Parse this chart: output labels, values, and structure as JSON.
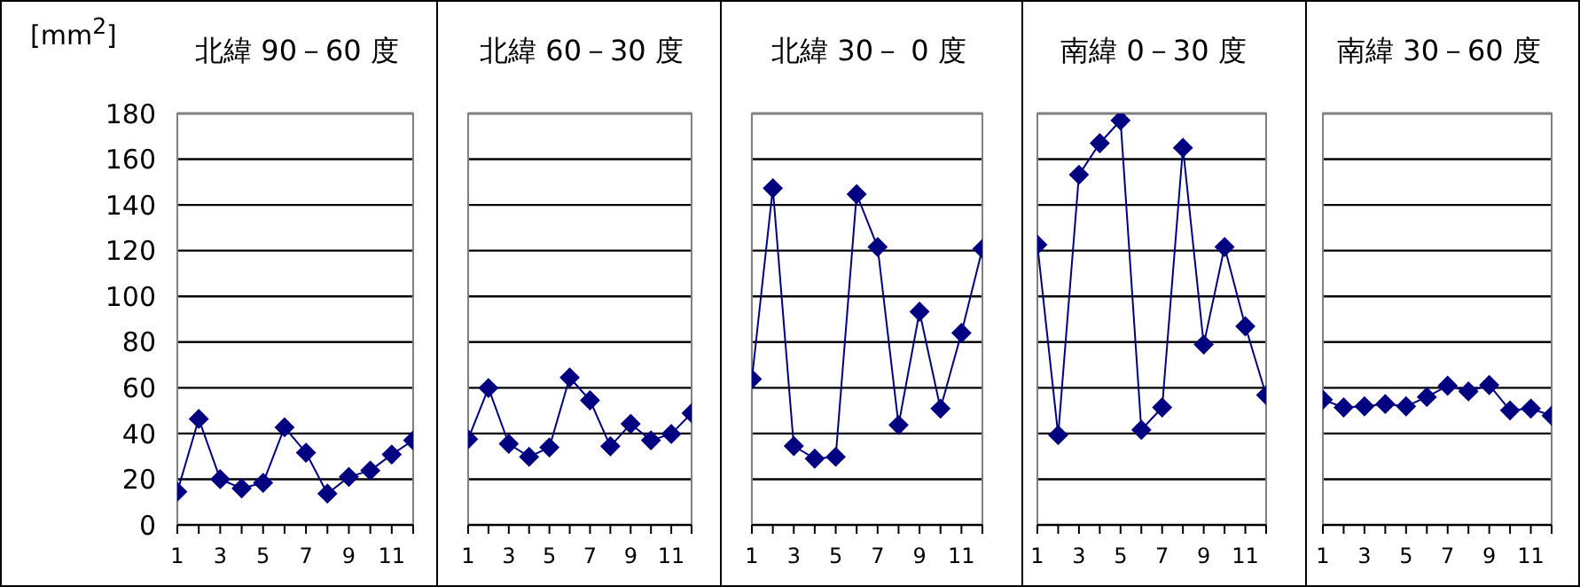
{
  "chart_data": [
    {
      "type": "line",
      "title": "北緯 90－60 度",
      "ylabel": "[mm$^{2}$]",
      "x": [
        1,
        2,
        3,
        4,
        5,
        6,
        7,
        8,
        9,
        10,
        11,
        12
      ],
      "series": [
        {
          "color": "#000080",
          "values": [
            14.5,
            46.4,
            20,
            16,
            18.4,
            42.7,
            31.6,
            13.7,
            21,
            23.8,
            30.8,
            37
          ]
        }
      ],
      "xlim": [
        1,
        12
      ],
      "xticks": [
        1,
        {
          "value": 2,
          "label": null
        },
        3,
        {
          "value": 4,
          "label": null
        },
        5,
        {
          "value": 6,
          "label": null
        },
        7,
        {
          "value": 8,
          "label": null
        },
        9,
        {
          "value": 10,
          "label": null
        },
        11,
        {
          "value": 12,
          "label": null
        }
      ],
      "ylim": [
        0,
        180
      ],
      "yticks": [
        0,
        20,
        40,
        60,
        80,
        100,
        120,
        140,
        160,
        180
      ],
      "grid": "y",
      "marker": "diamond",
      "legend": false
    },
    {
      "type": "line",
      "title": "北緯 60－30 度",
      "x": [
        1,
        2,
        3,
        4,
        5,
        6,
        7,
        8,
        9,
        10,
        11,
        12
      ],
      "series": [
        {
          "color": "#000080",
          "values": [
            37.5,
            59.9,
            35.5,
            29.8,
            33.9,
            64.5,
            54.5,
            34.4,
            44.2,
            37,
            39.8,
            48.9
          ]
        }
      ],
      "xlim": [
        1,
        12
      ],
      "xticks": [
        1,
        {
          "value": 2,
          "label": null
        },
        3,
        {
          "value": 4,
          "label": null
        },
        5,
        {
          "value": 6,
          "label": null
        },
        7,
        {
          "value": 8,
          "label": null
        },
        9,
        {
          "value": 10,
          "label": null
        },
        11,
        {
          "value": 12,
          "label": null
        }
      ],
      "ylim": [
        0,
        180
      ],
      "yticks": [
        0,
        20,
        40,
        60,
        80,
        100,
        120,
        140,
        160,
        180
      ],
      "tick_labels": "x",
      "grid": "y",
      "marker": "diamond",
      "legend": false
    },
    {
      "type": "line",
      "title": "北緯 30－ 0 度",
      "x": [
        1,
        2,
        3,
        4,
        5,
        6,
        7,
        8,
        9,
        10,
        11,
        12
      ],
      "series": [
        {
          "color": "#000080",
          "values": [
            63.8,
            147.3,
            34.5,
            29,
            29.8,
            144.7,
            121.6,
            43.7,
            93.3,
            50.9,
            84,
            120.8
          ]
        }
      ],
      "xlim": [
        1,
        12
      ],
      "xticks": [
        1,
        {
          "value": 2,
          "label": null
        },
        3,
        {
          "value": 4,
          "label": null
        },
        5,
        {
          "value": 6,
          "label": null
        },
        7,
        {
          "value": 8,
          "label": null
        },
        9,
        {
          "value": 10,
          "label": null
        },
        11,
        {
          "value": 12,
          "label": null
        }
      ],
      "ylim": [
        0,
        180
      ],
      "yticks": [
        0,
        20,
        40,
        60,
        80,
        100,
        120,
        140,
        160,
        180
      ],
      "tick_labels": "x",
      "grid": "y",
      "marker": "diamond",
      "legend": false
    },
    {
      "type": "line",
      "title": "南緯  0－30 度",
      "x": [
        1,
        2,
        3,
        4,
        5,
        6,
        7,
        8,
        9,
        10,
        11,
        12
      ],
      "series": [
        {
          "color": "#000080",
          "values": [
            122.6,
            39.3,
            153.2,
            167,
            177,
            41.6,
            51.4,
            165,
            78.9,
            121.6,
            86.9,
            56.8
          ]
        }
      ],
      "xlim": [
        1,
        12
      ],
      "xticks": [
        1,
        {
          "value": 2,
          "label": null
        },
        3,
        {
          "value": 4,
          "label": null
        },
        5,
        {
          "value": 6,
          "label": null
        },
        7,
        {
          "value": 8,
          "label": null
        },
        9,
        {
          "value": 10,
          "label": null
        },
        11,
        {
          "value": 12,
          "label": null
        }
      ],
      "ylim": [
        0,
        180
      ],
      "yticks": [
        0,
        20,
        40,
        60,
        80,
        100,
        120,
        140,
        160,
        180
      ],
      "tick_labels": "x",
      "grid": "y",
      "marker": "diamond",
      "legend": false
    },
    {
      "type": "line",
      "title": "南緯 30－60 度",
      "x": [
        1,
        2,
        3,
        4,
        5,
        6,
        7,
        8,
        9,
        10,
        11,
        12
      ],
      "series": [
        {
          "color": "#000080",
          "values": [
            54.8,
            51.4,
            51.9,
            52.9,
            51.9,
            56,
            60.9,
            58.4,
            61.2,
            50.1,
            50.9,
            47.8
          ]
        }
      ],
      "xlim": [
        1,
        12
      ],
      "xticks": [
        1,
        {
          "value": 2,
          "label": null
        },
        3,
        {
          "value": 4,
          "label": null
        },
        5,
        {
          "value": 6,
          "label": null
        },
        7,
        {
          "value": 8,
          "label": null
        },
        9,
        {
          "value": 10,
          "label": null
        },
        11,
        {
          "value": 12,
          "label": null
        }
      ],
      "ylim": [
        0,
        180
      ],
      "yticks": [
        0,
        20,
        40,
        60,
        80,
        100,
        120,
        140,
        160,
        180
      ],
      "tick_labels": "x",
      "grid": "y",
      "marker": "diamond",
      "legend": false
    }
  ]
}
